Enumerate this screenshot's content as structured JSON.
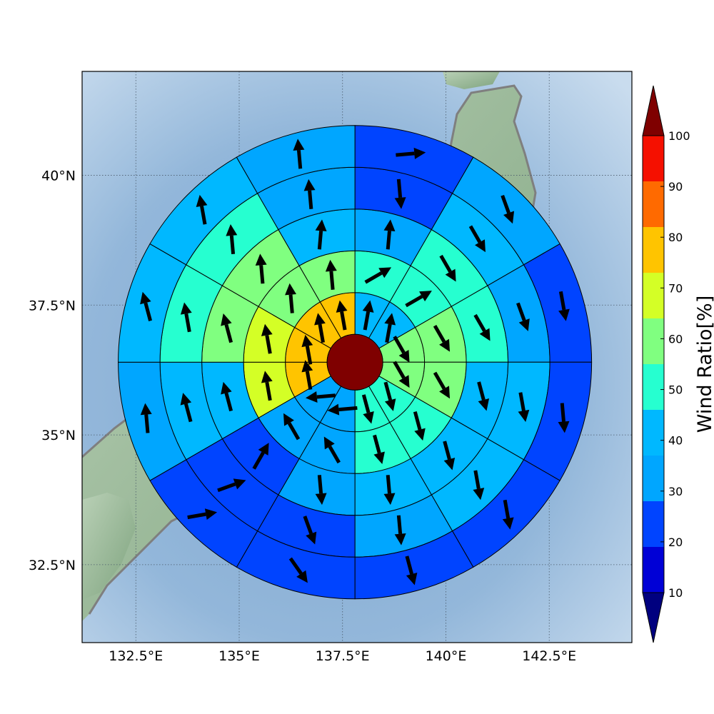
{
  "map": {
    "lon_range": [
      131.2,
      144.5
    ],
    "lat_range": [
      31.0,
      42.0
    ],
    "lon_ticks": [
      132.5,
      135,
      137.5,
      140,
      142.5
    ],
    "lat_ticks": [
      32.5,
      35,
      37.5,
      40
    ],
    "lon_tick_labels": [
      "132.5°E",
      "135°E",
      "137.5°E",
      "140°E",
      "142.5°E"
    ],
    "lat_tick_labels": [
      "32.5°N",
      "35°N",
      "37.5°N",
      "40°N"
    ],
    "coastline_color": "#7f7f7f",
    "sea_color": "#8fb3d6",
    "land_color": "#9bbf9b"
  },
  "chart_data": {
    "type": "heatmap",
    "description_units": "polar sector grid centred on the centre point; values are wind ratio in percent",
    "center_lon": 137.8,
    "center_lat": 36.4,
    "center_color": "#7f0000",
    "ring_count": 5,
    "sectors_per_ring": 12,
    "sector_order": "clockwise from north; sector 0 spans 0-30 degrees",
    "rings": [
      {
        "ring": 1,
        "values": [
          45,
          45,
          65,
          65,
          55,
          55,
          35,
          35,
          85,
          85,
          85,
          85
        ],
        "arrow_dirs": [
          10,
          10,
          150,
          150,
          165,
          165,
          265,
          265,
          350,
          350,
          350,
          350
        ]
      },
      {
        "ring": 2,
        "values": [
          55,
          55,
          65,
          65,
          55,
          55,
          35,
          35,
          75,
          75,
          65,
          65
        ],
        "arrow_dirs": [
          60,
          60,
          150,
          150,
          165,
          165,
          330,
          330,
          350,
          350,
          355,
          355
        ]
      },
      {
        "ring": 3,
        "values": [
          35,
          55,
          55,
          45,
          45,
          45,
          35,
          25,
          45,
          65,
          65,
          45
        ],
        "arrow_dirs": [
          5,
          150,
          150,
          165,
          165,
          175,
          175,
          30,
          345,
          345,
          355,
          5
        ]
      },
      {
        "ring": 4,
        "values": [
          25,
          45,
          35,
          45,
          45,
          35,
          25,
          25,
          45,
          55,
          55,
          35
        ],
        "arrow_dirs": [
          175,
          150,
          160,
          170,
          170,
          175,
          160,
          70,
          345,
          350,
          355,
          355
        ]
      },
      {
        "ring": 5,
        "values": [
          25,
          35,
          25,
          25,
          25,
          25,
          25,
          25,
          35,
          45,
          45,
          35
        ],
        "arrow_dirs": [
          85,
          160,
          170,
          175,
          170,
          165,
          145,
          80,
          355,
          345,
          350,
          355
        ]
      }
    ],
    "colorbar": {
      "title": "Wind Ratio[%]",
      "ticks": [
        10,
        20,
        30,
        40,
        50,
        60,
        70,
        80,
        90,
        100
      ],
      "tick_labels": [
        "10",
        "20",
        "30",
        "40",
        "50",
        "60",
        "70",
        "80",
        "90",
        "100"
      ],
      "colors": [
        "#0000d6",
        "#0044ff",
        "#00a6ff",
        "#00b8ff",
        "#26ffd0",
        "#80ff80",
        "#d4ff26",
        "#ffc400",
        "#ff6a00",
        "#f51000"
      ],
      "under_color": "#00007f",
      "over_color": "#7f0000"
    }
  }
}
